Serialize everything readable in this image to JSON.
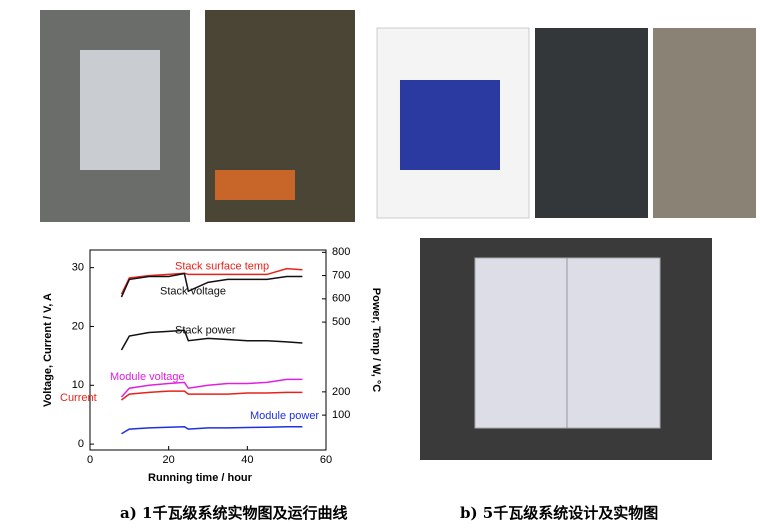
{
  "chart_data": {
    "type": "line",
    "xlabel": "Running time / hour",
    "ylabel": "Voltage, Current / V, A",
    "y2label": "Power, Temp / W, °C",
    "x": [
      8,
      10,
      15,
      20,
      24,
      25,
      30,
      35,
      40,
      45,
      50,
      54
    ],
    "xlim": [
      0,
      60
    ],
    "xticks": [
      0,
      20,
      40,
      60
    ],
    "ylim": [
      -1,
      33
    ],
    "yticks": [
      0,
      10,
      20,
      30
    ],
    "y2lim": [
      -50,
      810
    ],
    "y2ticks": [
      100,
      200,
      500,
      600,
      700,
      800
    ],
    "series": [
      {
        "name": "Stack surface temp",
        "color": "#e8221b",
        "axis": "y2",
        "values": [
          620,
          690,
          700,
          705,
          710,
          705,
          705,
          705,
          705,
          705,
          730,
          725
        ]
      },
      {
        "name": "Stack voltage",
        "color": "#111111",
        "values": [
          25,
          28,
          28.5,
          28.5,
          29,
          26,
          27.5,
          28,
          28,
          28,
          28.5,
          28.5
        ]
      },
      {
        "name": "Stack power",
        "color": "#111111",
        "axis": "y2",
        "values": [
          380,
          440,
          455,
          460,
          465,
          420,
          430,
          425,
          420,
          420,
          415,
          410
        ]
      },
      {
        "name": "Module voltage",
        "color": "#e020e0",
        "values": [
          8,
          9.5,
          10,
          10.3,
          10.5,
          9.5,
          10,
          10.3,
          10.3,
          10.5,
          11,
          11
        ]
      },
      {
        "name": "Current",
        "color": "#e8221b",
        "values": [
          7.5,
          8.5,
          8.8,
          9,
          9,
          8.5,
          8.5,
          8.5,
          8.7,
          8.7,
          8.8,
          8.8
        ]
      },
      {
        "name": "Module power",
        "color": "#2030e0",
        "axis": "y2",
        "values": [
          20,
          40,
          45,
          48,
          50,
          40,
          45,
          45,
          47,
          48,
          50,
          50
        ]
      }
    ]
  },
  "captions": [
    "a) 1千瓦级系统实物图及运行曲线",
    "b) 5千瓦级系统设计及实物图"
  ]
}
